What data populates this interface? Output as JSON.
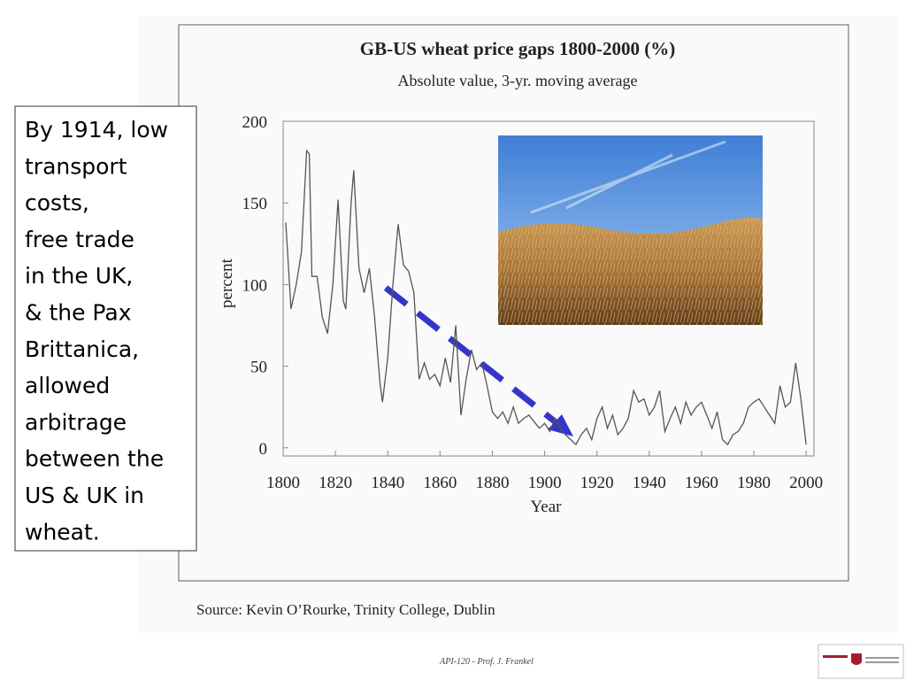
{
  "chart_data": {
    "type": "line",
    "title": "GB-US wheat price gaps 1800-2000 (%)",
    "subtitle": "Absolute value, 3-yr. moving average",
    "y_label": "percent",
    "x_label": "Year",
    "source": "Source:  Kevin O’Rourke, Trinity College, Dublin",
    "annotation": [
      "By 1914, low",
      "transport",
      "costs,",
      "free trade",
      "in the UK,",
      "& the Pax",
      "Brittanica,",
      "allowed",
      "arbitrage",
      "between the",
      "US & UK in",
      "wheat."
    ],
    "footer": "API-120 -  Prof. J. Frankel",
    "color": "#555555",
    "x": [
      1801,
      1803,
      1805,
      1807,
      1809,
      1810,
      1811,
      1813,
      1815,
      1817,
      1819,
      1821,
      1823,
      1824,
      1826,
      1827,
      1829,
      1831,
      1833,
      1835,
      1837,
      1838,
      1840,
      1842,
      1844,
      1846,
      1848,
      1850,
      1852,
      1854,
      1856,
      1858,
      1860,
      1862,
      1864,
      1866,
      1868,
      1870,
      1872,
      1874,
      1876,
      1878,
      1880,
      1882,
      1884,
      1886,
      1888,
      1890,
      1892,
      1894,
      1896,
      1898,
      1900,
      1902,
      1904,
      1906,
      1908,
      1910,
      1912,
      1914,
      1916,
      1918,
      1920,
      1922,
      1924,
      1926,
      1928,
      1930,
      1932,
      1934,
      1936,
      1938,
      1940,
      1942,
      1944,
      1946,
      1948,
      1950,
      1952,
      1954,
      1956,
      1958,
      1960,
      1962,
      1964,
      1966,
      1968,
      1970,
      1972,
      1974,
      1976,
      1978,
      1980,
      1982,
      1984,
      1986,
      1988,
      1990,
      1992,
      1994,
      1996,
      1998,
      2000
    ],
    "values": [
      138,
      85,
      100,
      120,
      182,
      180,
      105,
      105,
      80,
      70,
      100,
      152,
      90,
      85,
      150,
      170,
      110,
      95,
      110,
      80,
      40,
      28,
      55,
      100,
      137,
      112,
      108,
      95,
      42,
      52,
      42,
      45,
      38,
      55,
      40,
      75,
      20,
      42,
      60,
      48,
      52,
      38,
      22,
      18,
      22,
      15,
      25,
      15,
      18,
      20,
      16,
      12,
      15,
      10,
      18,
      12,
      8,
      5,
      2,
      8,
      12,
      5,
      18,
      25,
      12,
      20,
      8,
      12,
      18,
      35,
      28,
      30,
      20,
      25,
      35,
      10,
      18,
      25,
      15,
      28,
      20,
      25,
      28,
      20,
      12,
      22,
      5,
      2,
      8,
      10,
      15,
      25,
      28,
      30,
      25,
      20,
      15,
      38,
      25,
      28,
      52,
      30,
      2
    ],
    "xlim": [
      1800,
      2003
    ],
    "ylim": [
      -5,
      200
    ],
    "xticks": [
      1800,
      1820,
      1840,
      1860,
      1880,
      1900,
      1920,
      1940,
      1960,
      1980,
      2000
    ],
    "yticks": [
      0,
      50,
      100,
      150,
      200
    ],
    "grid": false
  }
}
